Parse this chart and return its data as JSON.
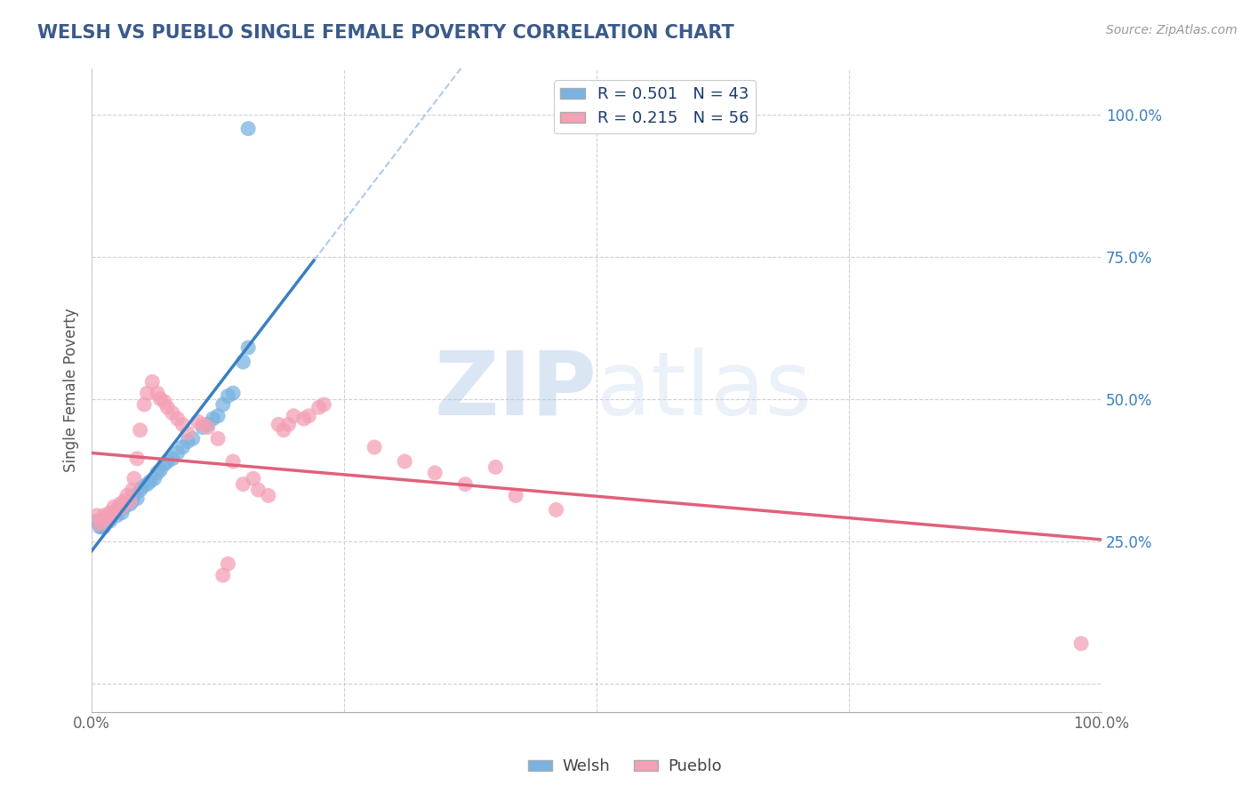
{
  "title": "WELSH VS PUEBLO SINGLE FEMALE POVERTY CORRELATION CHART",
  "source": "Source: ZipAtlas.com",
  "ylabel": "Single Female Poverty",
  "xlim": [
    0.0,
    1.0
  ],
  "ylim": [
    -0.05,
    1.08
  ],
  "ytick_positions": [
    0.0,
    0.25,
    0.5,
    0.75,
    1.0
  ],
  "ytick_labels": [
    "",
    "25.0%",
    "50.0%",
    "75.0%",
    "100.0%"
  ],
  "xtick_positions": [
    0.0,
    0.25,
    0.5,
    0.75,
    1.0
  ],
  "xticklabels": [
    "0.0%",
    "",
    "",
    "",
    "100.0%"
  ],
  "welsh_color": "#7ab3e0",
  "pueblo_color": "#f4a0b5",
  "welsh_line_color": "#3a7fc1",
  "pueblo_line_color": "#e0607a",
  "welsh_R": 0.501,
  "welsh_N": 43,
  "pueblo_R": 0.215,
  "pueblo_N": 56,
  "watermark_zip": "ZIP",
  "watermark_atlas": "atlas",
  "background_color": "#ffffff",
  "grid_color": "#d0d0d0",
  "title_color": "#3a5a8a",
  "welsh_scatter": [
    [
      0.005,
      0.285
    ],
    [
      0.008,
      0.275
    ],
    [
      0.01,
      0.275
    ],
    [
      0.012,
      0.275
    ],
    [
      0.013,
      0.29
    ],
    [
      0.015,
      0.285
    ],
    [
      0.018,
      0.285
    ],
    [
      0.02,
      0.295
    ],
    [
      0.022,
      0.3
    ],
    [
      0.025,
      0.295
    ],
    [
      0.027,
      0.305
    ],
    [
      0.028,
      0.31
    ],
    [
      0.03,
      0.3
    ],
    [
      0.032,
      0.31
    ],
    [
      0.035,
      0.32
    ],
    [
      0.038,
      0.315
    ],
    [
      0.04,
      0.32
    ],
    [
      0.042,
      0.33
    ],
    [
      0.045,
      0.325
    ],
    [
      0.048,
      0.34
    ],
    [
      0.05,
      0.345
    ],
    [
      0.055,
      0.35
    ],
    [
      0.058,
      0.355
    ],
    [
      0.062,
      0.36
    ],
    [
      0.065,
      0.37
    ],
    [
      0.068,
      0.375
    ],
    [
      0.072,
      0.385
    ],
    [
      0.075,
      0.39
    ],
    [
      0.08,
      0.395
    ],
    [
      0.085,
      0.405
    ],
    [
      0.09,
      0.415
    ],
    [
      0.095,
      0.425
    ],
    [
      0.1,
      0.43
    ],
    [
      0.11,
      0.45
    ],
    [
      0.115,
      0.455
    ],
    [
      0.12,
      0.465
    ],
    [
      0.125,
      0.47
    ],
    [
      0.13,
      0.49
    ],
    [
      0.135,
      0.505
    ],
    [
      0.14,
      0.51
    ],
    [
      0.15,
      0.565
    ],
    [
      0.155,
      0.59
    ],
    [
      0.155,
      0.975
    ]
  ],
  "pueblo_scatter": [
    [
      0.005,
      0.295
    ],
    [
      0.008,
      0.28
    ],
    [
      0.01,
      0.285
    ],
    [
      0.012,
      0.295
    ],
    [
      0.015,
      0.29
    ],
    [
      0.018,
      0.3
    ],
    [
      0.02,
      0.295
    ],
    [
      0.022,
      0.31
    ],
    [
      0.025,
      0.305
    ],
    [
      0.028,
      0.315
    ],
    [
      0.03,
      0.31
    ],
    [
      0.032,
      0.32
    ],
    [
      0.035,
      0.33
    ],
    [
      0.038,
      0.32
    ],
    [
      0.04,
      0.34
    ],
    [
      0.042,
      0.36
    ],
    [
      0.045,
      0.395
    ],
    [
      0.048,
      0.445
    ],
    [
      0.052,
      0.49
    ],
    [
      0.055,
      0.51
    ],
    [
      0.06,
      0.53
    ],
    [
      0.065,
      0.51
    ],
    [
      0.068,
      0.5
    ],
    [
      0.072,
      0.495
    ],
    [
      0.075,
      0.485
    ],
    [
      0.08,
      0.475
    ],
    [
      0.085,
      0.465
    ],
    [
      0.09,
      0.455
    ],
    [
      0.095,
      0.44
    ],
    [
      0.105,
      0.46
    ],
    [
      0.11,
      0.455
    ],
    [
      0.115,
      0.45
    ],
    [
      0.125,
      0.43
    ],
    [
      0.13,
      0.19
    ],
    [
      0.135,
      0.21
    ],
    [
      0.14,
      0.39
    ],
    [
      0.15,
      0.35
    ],
    [
      0.16,
      0.36
    ],
    [
      0.165,
      0.34
    ],
    [
      0.175,
      0.33
    ],
    [
      0.185,
      0.455
    ],
    [
      0.19,
      0.445
    ],
    [
      0.195,
      0.455
    ],
    [
      0.2,
      0.47
    ],
    [
      0.21,
      0.465
    ],
    [
      0.215,
      0.47
    ],
    [
      0.225,
      0.485
    ],
    [
      0.23,
      0.49
    ],
    [
      0.28,
      0.415
    ],
    [
      0.31,
      0.39
    ],
    [
      0.34,
      0.37
    ],
    [
      0.37,
      0.35
    ],
    [
      0.4,
      0.38
    ],
    [
      0.42,
      0.33
    ],
    [
      0.46,
      0.305
    ],
    [
      0.98,
      0.07
    ]
  ]
}
